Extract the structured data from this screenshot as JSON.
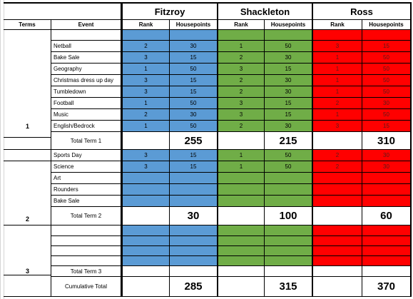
{
  "teams": [
    "Fitzroy",
    "Shackleton",
    "Ross"
  ],
  "headers": {
    "terms": "Terms",
    "event": "Event",
    "rank": "Rank",
    "housepoints": "Housepoints"
  },
  "term_labels": [
    "1",
    "2",
    "3"
  ],
  "totals_labels": [
    "Total Term 1",
    "Total Term 2",
    "Total Term 3",
    "Cumulative Total"
  ],
  "term1_events": [
    {
      "event": "Netball",
      "f": [
        "2",
        "30"
      ],
      "s": [
        "1",
        "50"
      ],
      "r": [
        "3",
        "15"
      ]
    },
    {
      "event": "Bake Sale",
      "f": [
        "3",
        "15"
      ],
      "s": [
        "2",
        "30"
      ],
      "r": [
        "1",
        "50"
      ]
    },
    {
      "event": "Geography",
      "f": [
        "1",
        "50"
      ],
      "s": [
        "3",
        "15"
      ],
      "r": [
        "1",
        "50"
      ]
    },
    {
      "event": "Christmas dress up day",
      "f": [
        "3",
        "15"
      ],
      "s": [
        "2",
        "30"
      ],
      "r": [
        "1",
        "50"
      ]
    },
    {
      "event": "Tumbledown",
      "f": [
        "3",
        "15"
      ],
      "s": [
        "2",
        "30"
      ],
      "r": [
        "1",
        "50"
      ]
    },
    {
      "event": "Football",
      "f": [
        "1",
        "50"
      ],
      "s": [
        "3",
        "15"
      ],
      "r": [
        "2",
        "30"
      ]
    },
    {
      "event": "Music",
      "f": [
        "2",
        "30"
      ],
      "s": [
        "3",
        "15"
      ],
      "r": [
        "1",
        "50"
      ]
    },
    {
      "event": "English/Bedrock",
      "f": [
        "1",
        "50"
      ],
      "s": [
        "2",
        "30"
      ],
      "r": [
        "3",
        "15"
      ]
    }
  ],
  "term1_totals": [
    "255",
    "215",
    "310"
  ],
  "term2_events": [
    {
      "event": "Sports Day",
      "f": [
        "3",
        "15"
      ],
      "s": [
        "1",
        "50"
      ],
      "r": [
        "2",
        "30"
      ]
    },
    {
      "event": "Science",
      "f": [
        "3",
        "15"
      ],
      "s": [
        "1",
        "50"
      ],
      "r": [
        "2",
        "30"
      ]
    },
    {
      "event": "Art",
      "f": [
        "",
        ""
      ],
      "s": [
        "",
        ""
      ],
      "r": [
        "",
        ""
      ]
    },
    {
      "event": "Rounders",
      "f": [
        "",
        ""
      ],
      "s": [
        "",
        ""
      ],
      "r": [
        "",
        ""
      ]
    },
    {
      "event": "Bake Sale",
      "f": [
        "",
        ""
      ],
      "s": [
        "",
        ""
      ],
      "r": [
        "",
        ""
      ]
    }
  ],
  "term2_totals": [
    "30",
    "100",
    "60"
  ],
  "cumulative_totals": [
    "285",
    "315",
    "370"
  ],
  "colors": {
    "fitzroy": "#5b9bd5",
    "shackleton": "#70ad47",
    "ross": "#ff0000"
  }
}
